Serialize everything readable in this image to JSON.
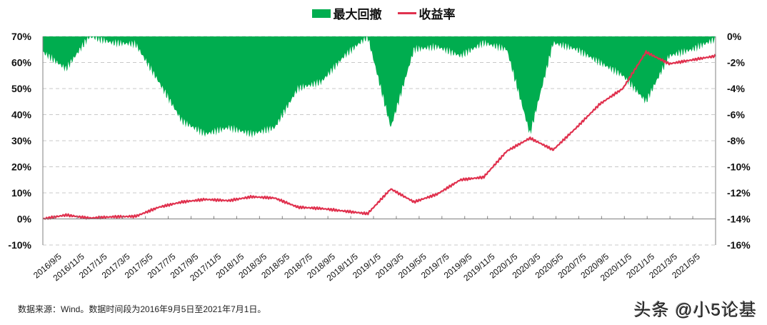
{
  "legend": {
    "drawdown_label": "最大回撤",
    "return_label": "收益率"
  },
  "colors": {
    "drawdown": "#00ad4f",
    "return": "#e0314e",
    "grid": "#c8c8c8",
    "axis": "#808080"
  },
  "left_axis": {
    "ticks": [
      "70%",
      "60%",
      "50%",
      "40%",
      "30%",
      "20%",
      "10%",
      "0%",
      "-10%"
    ],
    "values": [
      70,
      60,
      50,
      40,
      30,
      20,
      10,
      0,
      -10
    ]
  },
  "right_axis": {
    "ticks": [
      "0%",
      "-2%",
      "-4%",
      "-6%",
      "-8%",
      "-10%",
      "-12%",
      "-14%",
      "-16%"
    ],
    "values": [
      0,
      -2,
      -4,
      -6,
      -8,
      -10,
      -12,
      -14,
      -16
    ]
  },
  "x_ticks": [
    "2016/9/5",
    "2016/11/5",
    "2017/1/5",
    "2017/3/5",
    "2017/5/5",
    "2017/7/5",
    "2017/9/5",
    "2017/11/5",
    "2018/1/5",
    "2018/3/5",
    "2018/5/5",
    "2018/7/5",
    "2018/9/5",
    "2018/11/5",
    "2019/1/5",
    "2019/3/5",
    "2019/5/5",
    "2019/7/5",
    "2019/9/5",
    "2019/11/5",
    "2020/1/5",
    "2020/3/5",
    "2020/5/5",
    "2020/7/5",
    "2020/9/5",
    "2020/11/5",
    "2021/1/5",
    "2021/3/5",
    "2021/5/5"
  ],
  "footer": {
    "source": "数据来源：Wind。数据时间段为2016年9月5日至2021年7月1日。",
    "watermark": "头条 @小5论基"
  },
  "chart_data": {
    "type": "area+line",
    "title": "",
    "legend": [
      "最大回撤",
      "收益率"
    ],
    "legend_position": "top",
    "grid": true,
    "x_start": "2016/9/5",
    "x_end": "2021/7/1",
    "categories": [
      "2016/9/5",
      "2016/11/5",
      "2017/1/5",
      "2017/3/5",
      "2017/5/5",
      "2017/7/5",
      "2017/9/5",
      "2017/11/5",
      "2018/1/5",
      "2018/3/5",
      "2018/5/5",
      "2018/7/5",
      "2018/9/5",
      "2018/11/5",
      "2019/1/5",
      "2019/3/5",
      "2019/5/5",
      "2019/7/5",
      "2019/9/5",
      "2019/11/5",
      "2020/1/5",
      "2020/3/5",
      "2020/5/5",
      "2020/7/5",
      "2020/9/5",
      "2020/11/5",
      "2021/1/5",
      "2021/3/5",
      "2021/5/5",
      "2021/7/1"
    ],
    "series": [
      {
        "name": "收益率",
        "type": "line",
        "axis": "left",
        "unit": "%",
        "values": [
          0.0,
          1.5,
          0.3,
          0.8,
          1.0,
          4.5,
          6.5,
          7.5,
          7.0,
          8.5,
          8.0,
          4.5,
          4.0,
          3.0,
          2.0,
          11.5,
          6.5,
          9.5,
          15.0,
          16.0,
          26.0,
          31.0,
          26.5,
          35.0,
          44.0,
          50.0,
          64.0,
          59.5,
          61.0,
          62.5
        ]
      },
      {
        "name": "最大回撤",
        "type": "area",
        "axis": "right",
        "unit": "%",
        "values": [
          -1.2,
          -2.5,
          0.0,
          -0.5,
          -0.6,
          -3.5,
          -6.5,
          -7.5,
          -7.0,
          -7.5,
          -7.0,
          -4.0,
          -3.5,
          -1.5,
          0.0,
          -7.0,
          -1.0,
          -0.8,
          -1.5,
          -0.5,
          -1.0,
          -7.5,
          -0.5,
          -1.0,
          -2.0,
          -3.0,
          -5.0,
          -1.5,
          -1.0,
          -0.2
        ]
      }
    ],
    "ylabel_left": "",
    "ylabel_right": "",
    "ylim_left": [
      -10,
      70
    ],
    "ylim_right": [
      -16,
      0
    ]
  }
}
